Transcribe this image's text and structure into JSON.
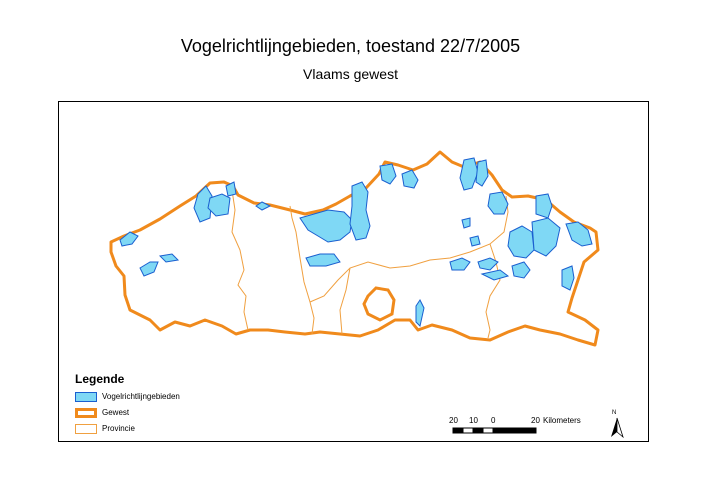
{
  "map": {
    "title": "Vogelrichtlijngebieden, toestand 22/7/2005",
    "subtitle": "Vlaams gewest",
    "colors": {
      "protected_area_fill": "#7fd8f5",
      "protected_area_stroke": "#1a5fd0",
      "region_border": "#f08a1c",
      "province_border": "#f0a040"
    }
  },
  "legend": {
    "title": "Legende",
    "items": [
      {
        "label": "Vogelrichtlijngebieden",
        "symbol": "blue-filled-box"
      },
      {
        "label": "Gewest",
        "symbol": "thick-orange-outline-box"
      },
      {
        "label": "Provincie",
        "symbol": "thin-orange-outline-box"
      }
    ]
  },
  "scale_bar": {
    "tick_labels": [
      "20",
      "10",
      "0",
      "20"
    ],
    "unit": "Kilometers"
  },
  "north_arrow": {
    "label": "N"
  }
}
